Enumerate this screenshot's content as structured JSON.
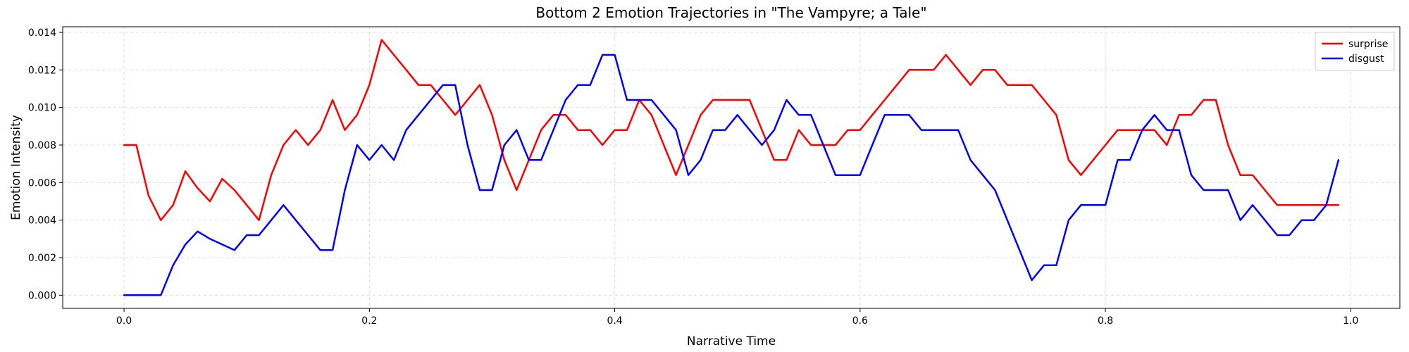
{
  "chart_data": {
    "type": "line",
    "title": "Bottom 2 Emotion Trajectories in \"The Vampyre; a Tale\"",
    "xlabel": "Narrative Time",
    "ylabel": "Emotion Intensity",
    "xlim": [
      -0.05,
      1.04
    ],
    "ylim": [
      -0.0007,
      0.0143
    ],
    "xticks": [
      0.0,
      0.2,
      0.4,
      0.6,
      0.8,
      1.0
    ],
    "xtick_labels": [
      "0.0",
      "0.2",
      "0.4",
      "0.6",
      "0.8",
      "1.0"
    ],
    "yticks": [
      0.0,
      0.002,
      0.004,
      0.006,
      0.008,
      0.01,
      0.012,
      0.014
    ],
    "ytick_labels": [
      "0.000",
      "0.002",
      "0.004",
      "0.006",
      "0.008",
      "0.010",
      "0.012",
      "0.014"
    ],
    "grid": true,
    "legend_position": "top-right",
    "x": [
      0.0,
      0.01,
      0.02,
      0.03,
      0.04,
      0.05,
      0.06,
      0.07,
      0.08,
      0.09,
      0.1,
      0.11,
      0.12,
      0.13,
      0.14,
      0.15,
      0.16,
      0.17,
      0.18,
      0.19,
      0.2,
      0.21,
      0.22,
      0.23,
      0.24,
      0.25,
      0.26,
      0.27,
      0.28,
      0.29,
      0.3,
      0.31,
      0.32,
      0.33,
      0.34,
      0.35,
      0.36,
      0.37,
      0.38,
      0.39,
      0.4,
      0.41,
      0.42,
      0.43,
      0.44,
      0.45,
      0.46,
      0.47,
      0.48,
      0.49,
      0.5,
      0.51,
      0.52,
      0.53,
      0.54,
      0.55,
      0.56,
      0.57,
      0.58,
      0.59,
      0.6,
      0.61,
      0.62,
      0.63,
      0.64,
      0.65,
      0.66,
      0.67,
      0.68,
      0.69,
      0.7,
      0.71,
      0.72,
      0.73,
      0.74,
      0.75,
      0.76,
      0.77,
      0.78,
      0.79,
      0.8,
      0.81,
      0.82,
      0.83,
      0.84,
      0.85,
      0.86,
      0.87,
      0.88,
      0.89,
      0.9,
      0.91,
      0.92,
      0.93,
      0.94,
      0.95,
      0.96,
      0.97,
      0.98,
      0.99
    ],
    "series": [
      {
        "name": "surprise",
        "color": "#ff0000",
        "values": [
          0.008,
          0.008,
          0.0053,
          0.004,
          0.0048,
          0.0066,
          0.0057,
          0.005,
          0.0062,
          0.0056,
          0.0048,
          0.004,
          0.0064,
          0.008,
          0.0088,
          0.008,
          0.0088,
          0.0104,
          0.0088,
          0.0096,
          0.0112,
          0.0136,
          0.0128,
          0.012,
          0.0112,
          0.0112,
          0.0104,
          0.0096,
          0.0104,
          0.0112,
          0.0096,
          0.0072,
          0.0056,
          0.0072,
          0.0088,
          0.0096,
          0.0096,
          0.0088,
          0.0088,
          0.008,
          0.0088,
          0.0088,
          0.0104,
          0.0096,
          0.008,
          0.0064,
          0.008,
          0.0096,
          0.0104,
          0.0104,
          0.0104,
          0.0104,
          0.0088,
          0.0072,
          0.0072,
          0.0088,
          0.008,
          0.008,
          0.008,
          0.0088,
          0.0088,
          0.0096,
          0.0104,
          0.0112,
          0.012,
          0.012,
          0.012,
          0.0128,
          0.012,
          0.0112,
          0.012,
          0.012,
          0.0112,
          0.0112,
          0.0112,
          0.0104,
          0.0096,
          0.0072,
          0.0064,
          0.0072,
          0.008,
          0.0088,
          0.0088,
          0.0088,
          0.0088,
          0.008,
          0.0096,
          0.0096,
          0.0104,
          0.0104,
          0.008,
          0.0064,
          0.0064,
          0.0056,
          0.0048,
          0.0048,
          0.0048,
          0.0048,
          0.0048,
          0.0048
        ]
      },
      {
        "name": "disgust",
        "color": "#0000ff",
        "values": [
          0.0,
          0.0,
          0.0,
          0.0,
          0.0016,
          0.0027,
          0.0034,
          0.003,
          0.0027,
          0.0024,
          0.0032,
          0.0032,
          0.004,
          0.0048,
          0.004,
          0.0032,
          0.0024,
          0.0024,
          0.0056,
          0.008,
          0.0072,
          0.008,
          0.0072,
          0.0088,
          0.0096,
          0.0104,
          0.0112,
          0.0112,
          0.008,
          0.0056,
          0.0056,
          0.008,
          0.0088,
          0.0072,
          0.0072,
          0.0088,
          0.0104,
          0.0112,
          0.0112,
          0.0128,
          0.0128,
          0.0104,
          0.0104,
          0.0104,
          0.0096,
          0.0088,
          0.0064,
          0.0072,
          0.0088,
          0.0088,
          0.0096,
          0.0088,
          0.008,
          0.0088,
          0.0104,
          0.0096,
          0.0096,
          0.008,
          0.0064,
          0.0064,
          0.0064,
          0.008,
          0.0096,
          0.0096,
          0.0096,
          0.0088,
          0.0088,
          0.0088,
          0.0088,
          0.0072,
          0.0064,
          0.0056,
          0.004,
          0.0024,
          0.0008,
          0.0016,
          0.0016,
          0.004,
          0.0048,
          0.0048,
          0.0048,
          0.0072,
          0.0072,
          0.0088,
          0.0096,
          0.0088,
          0.0088,
          0.0064,
          0.0056,
          0.0056,
          0.0056,
          0.004,
          0.0048,
          0.004,
          0.0032,
          0.0032,
          0.004,
          0.004,
          0.0048,
          0.0072
        ]
      }
    ]
  }
}
